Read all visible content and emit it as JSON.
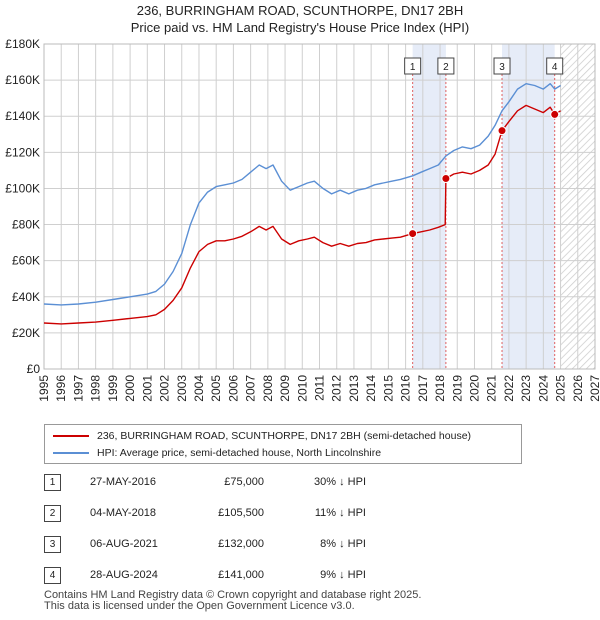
{
  "chart_data": {
    "type": "line",
    "title": "236, BURRINGHAM ROAD, SCUNTHORPE, DN17 2BH",
    "subtitle": "Price paid vs. HM Land Registry's House Price Index (HPI)",
    "xlim": [
      1995,
      2027
    ],
    "ylim": [
      0,
      180000
    ],
    "x_ticks": [
      "1995",
      "1996",
      "1997",
      "1998",
      "1999",
      "2000",
      "2001",
      "2002",
      "2003",
      "2004",
      "2005",
      "2006",
      "2007",
      "2008",
      "2009",
      "2010",
      "2011",
      "2012",
      "2013",
      "2014",
      "2015",
      "2016",
      "2017",
      "2018",
      "2019",
      "2020",
      "2021",
      "2022",
      "2023",
      "2024",
      "2025",
      "2026",
      "2027"
    ],
    "y_ticks": [
      {
        "value": 0,
        "label": "£0"
      },
      {
        "value": 20000,
        "label": "£20K"
      },
      {
        "value": 40000,
        "label": "£40K"
      },
      {
        "value": 60000,
        "label": "£60K"
      },
      {
        "value": 80000,
        "label": "£80K"
      },
      {
        "value": 100000,
        "label": "£100K"
      },
      {
        "value": 120000,
        "label": "£120K"
      },
      {
        "value": 140000,
        "label": "£140K"
      },
      {
        "value": 160000,
        "label": "£160K"
      },
      {
        "value": 180000,
        "label": "£180K"
      }
    ],
    "grid": true,
    "shaded_spans": [
      [
        2016.41,
        2018.34
      ],
      [
        2021.6,
        2024.66
      ]
    ],
    "forecast_start": 2025.0,
    "series": [
      {
        "name": "236, BURRINGHAM ROAD, SCUNTHORPE, DN17 2BH (semi-detached house)",
        "color": "#cc0000",
        "points": [
          [
            1995.0,
            25500
          ],
          [
            1996.0,
            25000
          ],
          [
            1997.0,
            25500
          ],
          [
            1998.0,
            26000
          ],
          [
            1999.0,
            27000
          ],
          [
            2000.0,
            28000
          ],
          [
            2001.0,
            29000
          ],
          [
            2001.5,
            30000
          ],
          [
            2002.0,
            33000
          ],
          [
            2002.5,
            38000
          ],
          [
            2003.0,
            45000
          ],
          [
            2003.5,
            56000
          ],
          [
            2004.0,
            65000
          ],
          [
            2004.5,
            69000
          ],
          [
            2005.0,
            71000
          ],
          [
            2005.5,
            71000
          ],
          [
            2006.0,
            72000
          ],
          [
            2006.5,
            73500
          ],
          [
            2007.0,
            76000
          ],
          [
            2007.5,
            79000
          ],
          [
            2007.9,
            77000
          ],
          [
            2008.3,
            79000
          ],
          [
            2008.8,
            72000
          ],
          [
            2009.3,
            69000
          ],
          [
            2009.8,
            71000
          ],
          [
            2010.3,
            72000
          ],
          [
            2010.7,
            73000
          ],
          [
            2011.2,
            70000
          ],
          [
            2011.7,
            68000
          ],
          [
            2012.2,
            69500
          ],
          [
            2012.7,
            68000
          ],
          [
            2013.2,
            69500
          ],
          [
            2013.7,
            70000
          ],
          [
            2014.2,
            71500
          ],
          [
            2014.7,
            72000
          ],
          [
            2015.2,
            72500
          ],
          [
            2015.7,
            73000
          ],
          [
            2016.41,
            75000
          ],
          [
            2016.9,
            76000
          ],
          [
            2017.4,
            77000
          ],
          [
            2017.9,
            78500
          ],
          [
            2018.3,
            80000
          ],
          [
            2018.34,
            105500
          ],
          [
            2018.8,
            108000
          ],
          [
            2019.3,
            109000
          ],
          [
            2019.8,
            108000
          ],
          [
            2020.3,
            110000
          ],
          [
            2020.8,
            113000
          ],
          [
            2021.2,
            119000
          ],
          [
            2021.6,
            132000
          ],
          [
            2022.0,
            137000
          ],
          [
            2022.5,
            143000
          ],
          [
            2023.0,
            146000
          ],
          [
            2023.5,
            144000
          ],
          [
            2024.0,
            142000
          ],
          [
            2024.4,
            145000
          ],
          [
            2024.66,
            141000
          ],
          [
            2025.0,
            143000
          ]
        ]
      },
      {
        "name": "HPI: Average price, semi-detached house, North Lincolnshire",
        "color": "#5b8fd4",
        "points": [
          [
            1995.0,
            36000
          ],
          [
            1996.0,
            35500
          ],
          [
            1997.0,
            36000
          ],
          [
            1998.0,
            37000
          ],
          [
            1999.0,
            38500
          ],
          [
            2000.0,
            40000
          ],
          [
            2001.0,
            41500
          ],
          [
            2001.5,
            43000
          ],
          [
            2002.0,
            47000
          ],
          [
            2002.5,
            54000
          ],
          [
            2003.0,
            64000
          ],
          [
            2003.5,
            80000
          ],
          [
            2004.0,
            92000
          ],
          [
            2004.5,
            98000
          ],
          [
            2005.0,
            101000
          ],
          [
            2005.5,
            102000
          ],
          [
            2006.0,
            103000
          ],
          [
            2006.5,
            105000
          ],
          [
            2007.0,
            109000
          ],
          [
            2007.5,
            113000
          ],
          [
            2007.9,
            111000
          ],
          [
            2008.3,
            113000
          ],
          [
            2008.8,
            104000
          ],
          [
            2009.3,
            99000
          ],
          [
            2009.8,
            101000
          ],
          [
            2010.3,
            103000
          ],
          [
            2010.7,
            104000
          ],
          [
            2011.2,
            100000
          ],
          [
            2011.7,
            97000
          ],
          [
            2012.2,
            99000
          ],
          [
            2012.7,
            97000
          ],
          [
            2013.2,
            99000
          ],
          [
            2013.7,
            100000
          ],
          [
            2014.2,
            102000
          ],
          [
            2014.7,
            103000
          ],
          [
            2015.2,
            104000
          ],
          [
            2015.7,
            105000
          ],
          [
            2016.41,
            107000
          ],
          [
            2016.9,
            109000
          ],
          [
            2017.4,
            111000
          ],
          [
            2017.9,
            113000
          ],
          [
            2018.34,
            118000
          ],
          [
            2018.8,
            121000
          ],
          [
            2019.3,
            123000
          ],
          [
            2019.8,
            122000
          ],
          [
            2020.3,
            124000
          ],
          [
            2020.8,
            129000
          ],
          [
            2021.2,
            135000
          ],
          [
            2021.6,
            143000
          ],
          [
            2022.0,
            148000
          ],
          [
            2022.5,
            155000
          ],
          [
            2023.0,
            158000
          ],
          [
            2023.5,
            157000
          ],
          [
            2024.0,
            155000
          ],
          [
            2024.4,
            158000
          ],
          [
            2024.66,
            155000
          ],
          [
            2025.0,
            157000
          ]
        ]
      }
    ],
    "sales": [
      {
        "label": "1",
        "date": "27-MAY-2016",
        "price": "£75,000",
        "hpi": "30% ↓ HPI",
        "x": 2016.41,
        "value": 75000
      },
      {
        "label": "2",
        "date": "04-MAY-2018",
        "price": "£105,500",
        "hpi": "11% ↓ HPI",
        "x": 2018.34,
        "value": 105500
      },
      {
        "label": "3",
        "date": "06-AUG-2021",
        "price": "£132,000",
        "hpi": "8% ↓ HPI",
        "x": 2021.6,
        "value": 132000
      },
      {
        "label": "4",
        "date": "28-AUG-2024",
        "price": "£141,000",
        "hpi": "9% ↓ HPI",
        "x": 2024.66,
        "value": 141000
      }
    ]
  },
  "legend": {
    "property": "236, BURRINGHAM ROAD, SCUNTHORPE, DN17 2BH (semi-detached house)",
    "hpi": "HPI: Average price, semi-detached house, North Lincolnshire"
  },
  "footer": {
    "line1": "Contains HM Land Registry data © Crown copyright and database right 2025.",
    "line2": "This data is licensed under the Open Government Licence v3.0."
  },
  "colors": {
    "property": "#cc0000",
    "hpi": "#5b8fd4",
    "shade": "#e6ecf8",
    "grid": "#cfcfcf"
  }
}
